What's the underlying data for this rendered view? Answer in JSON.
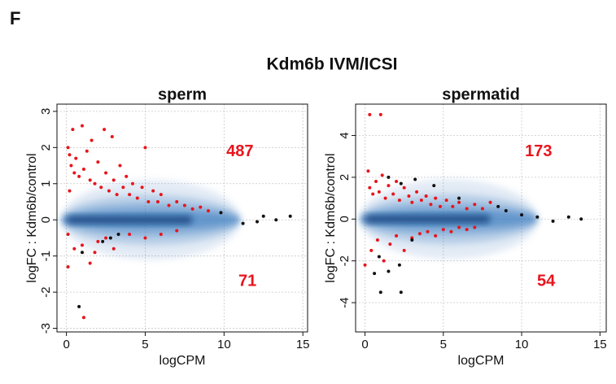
{
  "label": "F",
  "title": "Kdm6b IVM/ICSI",
  "chart_data": [
    {
      "type": "scatter",
      "title": "sperm",
      "x_label": "logCPM",
      "y_label": "logFC : Kdm6b/control",
      "xlim": [
        -0.6,
        15.3
      ],
      "ylim": [
        -3.1,
        3.2
      ],
      "xticks": [
        0,
        5,
        10,
        15
      ],
      "yticks": [
        -3,
        -2,
        -1,
        0,
        1,
        2,
        3
      ],
      "grid": true,
      "annotations": [
        {
          "text": "487",
          "color": "#e8141c"
        },
        {
          "text": "71",
          "color": "#e8141c"
        }
      ],
      "series": [
        {
          "color": "#e8141c",
          "x": [
            0.1,
            0.2,
            0.3,
            0.4,
            0.5,
            0.6,
            0.8,
            1.0,
            1.1,
            1.3,
            1.5,
            1.6,
            1.8,
            2.0,
            2.2,
            2.4,
            2.5,
            2.7,
            2.9,
            3.0,
            3.2,
            3.4,
            3.6,
            3.8,
            4.0,
            4.2,
            4.5,
            4.8,
            5.0,
            5.2,
            5.5,
            5.8,
            6.0,
            6.5,
            7.0,
            7.5,
            8.0,
            8.5,
            9.0,
            0.2,
            0.1,
            0.5,
            0.1,
            1.0,
            1.5,
            2.0,
            2.5,
            3.0,
            4.0,
            5.0,
            6.0,
            7.0,
            1.1,
            1.8
          ],
          "values": [
            2.0,
            1.8,
            1.5,
            2.5,
            1.3,
            1.7,
            1.2,
            2.6,
            1.4,
            1.9,
            1.1,
            2.2,
            1.0,
            1.6,
            0.9,
            2.5,
            1.3,
            0.8,
            2.3,
            1.1,
            0.7,
            1.5,
            0.9,
            1.2,
            0.7,
            1.0,
            0.6,
            0.9,
            2.0,
            0.5,
            0.8,
            0.5,
            0.7,
            0.4,
            0.5,
            0.4,
            0.3,
            0.35,
            0.25,
            0.8,
            -0.4,
            -0.8,
            -1.3,
            -0.7,
            -1.2,
            -0.6,
            -0.5,
            -0.8,
            -0.4,
            -0.5,
            -0.4,
            -0.3,
            -2.7,
            -0.9
          ]
        },
        {
          "color": "#111111",
          "x": [
            0.8,
            1.0,
            2.3,
            2.8,
            3.3,
            9.8,
            11.2,
            12.1,
            12.5,
            13.3,
            14.2
          ],
          "values": [
            -2.4,
            -0.9,
            -0.6,
            -0.5,
            -0.4,
            0.2,
            -0.1,
            -0.05,
            0.1,
            0.0,
            0.1
          ]
        }
      ]
    },
    {
      "type": "scatter",
      "title": "spermatid",
      "x_label": "logCPM",
      "y_label": "logFC : Kdm6b/control",
      "xlim": [
        -0.6,
        15.4
      ],
      "ylim": [
        -5.4,
        5.5
      ],
      "xticks": [
        0,
        5,
        10,
        15
      ],
      "yticks": [
        -4,
        -2,
        0,
        2,
        4
      ],
      "grid": true,
      "annotations": [
        {
          "text": "173",
          "color": "#e8141c"
        },
        {
          "text": "54",
          "color": "#e8141c"
        }
      ],
      "series": [
        {
          "color": "#e8141c",
          "x": [
            0.3,
            1.0,
            0.2,
            0.3,
            0.5,
            0.7,
            0.9,
            1.1,
            1.3,
            1.5,
            1.8,
            2.0,
            2.2,
            2.5,
            2.8,
            3.0,
            3.3,
            3.6,
            3.9,
            4.2,
            4.5,
            4.8,
            5.2,
            5.6,
            6.0,
            6.5,
            7.0,
            7.5,
            8.0,
            0.0,
            0.4,
            0.8,
            1.2,
            1.6,
            2.0,
            2.5,
            3.0,
            3.5,
            4.0,
            4.5,
            5.0,
            5.5,
            6.0,
            6.5,
            7.0
          ],
          "values": [
            5.0,
            5.0,
            2.3,
            1.5,
            1.2,
            1.8,
            1.3,
            2.1,
            1.0,
            1.6,
            1.2,
            1.8,
            0.9,
            1.5,
            1.1,
            0.8,
            1.3,
            0.9,
            1.1,
            0.7,
            1.0,
            0.6,
            0.9,
            0.6,
            0.8,
            0.5,
            0.7,
            0.5,
            0.8,
            -2.2,
            -1.5,
            -1.0,
            -2.0,
            -1.2,
            -0.8,
            -1.5,
            -0.9,
            -0.7,
            -0.6,
            -0.8,
            -0.5,
            -0.6,
            -0.4,
            -0.5,
            -0.4
          ]
        },
        {
          "color": "#111111",
          "x": [
            1.0,
            2.3,
            1.5,
            0.9,
            2.2,
            3.0,
            1.5,
            2.3,
            3.2,
            4.4,
            6.0,
            8.5,
            9.0,
            10.0,
            11.0,
            12.0,
            13.0,
            13.8,
            0.6
          ],
          "values": [
            -3.5,
            -3.5,
            -2.5,
            -1.8,
            -2.2,
            -1.0,
            2.0,
            1.7,
            1.9,
            1.6,
            1.0,
            0.6,
            0.4,
            0.2,
            0.1,
            -0.1,
            0.1,
            0.0,
            -2.6
          ]
        }
      ]
    }
  ]
}
